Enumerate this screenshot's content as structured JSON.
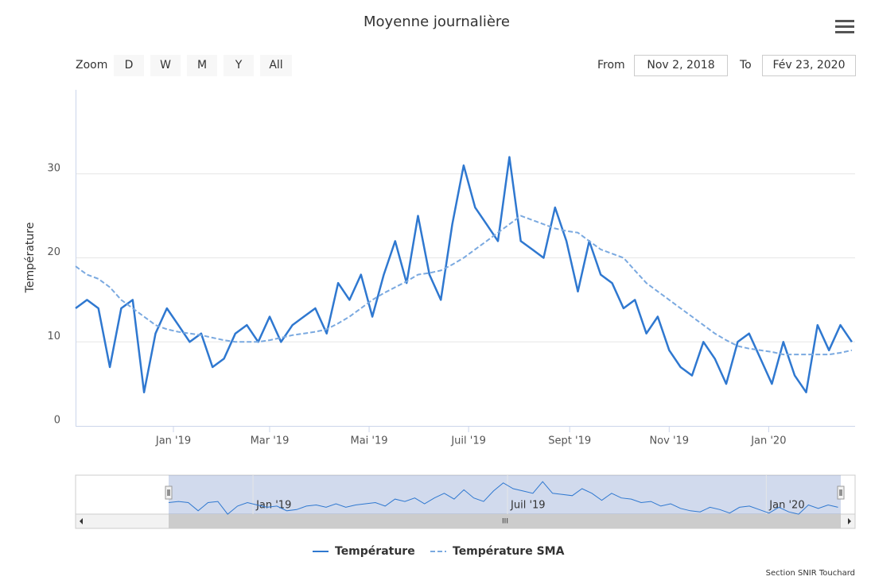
{
  "chart_data": {
    "type": "line",
    "title": "Moyenne journalière",
    "y_label": "Température",
    "range_selector": {
      "zoom_label": "Zoom",
      "buttons": [
        "D",
        "W",
        "M",
        "Y",
        "All"
      ],
      "from_label": "From",
      "from": "Nov 2, 2018",
      "to_label": "To",
      "to": "Fév 23, 2020"
    },
    "credits": "Section SNIR Touchard",
    "x": [
      "2018-11-02",
      "2018-11-09",
      "2018-11-16",
      "2018-11-23",
      "2018-11-30",
      "2018-12-07",
      "2018-12-14",
      "2018-12-21",
      "2018-12-28",
      "2019-01-04",
      "2019-01-11",
      "2019-01-18",
      "2019-01-25",
      "2019-02-01",
      "2019-02-08",
      "2019-02-15",
      "2019-02-22",
      "2019-03-01",
      "2019-03-08",
      "2019-03-15",
      "2019-03-22",
      "2019-03-29",
      "2019-04-05",
      "2019-04-12",
      "2019-04-19",
      "2019-04-26",
      "2019-05-03",
      "2019-05-10",
      "2019-05-17",
      "2019-05-24",
      "2019-05-31",
      "2019-06-07",
      "2019-06-14",
      "2019-06-21",
      "2019-06-28",
      "2019-07-05",
      "2019-07-12",
      "2019-07-19",
      "2019-07-26",
      "2019-08-02",
      "2019-08-09",
      "2019-08-16",
      "2019-08-23",
      "2019-08-30",
      "2019-09-06",
      "2019-09-13",
      "2019-09-20",
      "2019-09-27",
      "2019-10-04",
      "2019-10-11",
      "2019-10-18",
      "2019-10-25",
      "2019-11-01",
      "2019-11-08",
      "2019-11-15",
      "2019-11-22",
      "2019-11-29",
      "2019-12-06",
      "2019-12-13",
      "2019-12-20",
      "2019-12-27",
      "2020-01-03",
      "2020-01-10",
      "2020-01-17",
      "2020-01-24",
      "2020-01-31",
      "2020-02-07",
      "2020-02-14",
      "2020-02-21"
    ],
    "series": [
      {
        "name": "Température",
        "color": "#2f78d0",
        "dash": false,
        "values": [
          14,
          15,
          14,
          7,
          14,
          15,
          4,
          11,
          14,
          12,
          10,
          11,
          7,
          8,
          11,
          12,
          10,
          13,
          10,
          12,
          13,
          14,
          11,
          17,
          15,
          18,
          13,
          18,
          22,
          17,
          25,
          18,
          15,
          24,
          31,
          26,
          24,
          22,
          32,
          22,
          21,
          20,
          26,
          22,
          16,
          22,
          18,
          17,
          14,
          15,
          11,
          13,
          9,
          7,
          6,
          10,
          8,
          5,
          10,
          11,
          8,
          5,
          10,
          6,
          4,
          12,
          9,
          12,
          10
        ]
      },
      {
        "name": "Température SMA",
        "color": "#7aa9e0",
        "dash": true,
        "values": [
          19,
          18,
          17.5,
          16.5,
          15,
          14,
          13,
          12,
          11.5,
          11.2,
          11,
          10.8,
          10.5,
          10.2,
          10,
          10,
          10,
          10.2,
          10.5,
          10.8,
          11,
          11.2,
          11.5,
          12.2,
          13,
          14,
          15,
          15.8,
          16.5,
          17.2,
          18,
          18.2,
          18.5,
          19.2,
          20,
          21,
          22,
          23,
          24,
          25,
          24.5,
          24,
          23.5,
          23.2,
          23,
          22,
          21,
          20.5,
          20,
          18.5,
          17,
          16,
          15,
          14,
          13,
          12,
          11,
          10.2,
          9.5,
          9.2,
          9,
          8.8,
          8.5,
          8.5,
          8.5,
          8.5,
          8.5,
          8.7,
          9
        ]
      }
    ],
    "xlim": [
      "2018-11-02",
      "2020-02-23"
    ],
    "xticks": [
      {
        "value": "2019-01-01",
        "label": "Jan '19"
      },
      {
        "value": "2019-03-01",
        "label": "Mar '19"
      },
      {
        "value": "2019-05-01",
        "label": "Mai '19"
      },
      {
        "value": "2019-07-01",
        "label": "Juil '19"
      },
      {
        "value": "2019-09-01",
        "label": "Sept '19"
      },
      {
        "value": "2019-11-01",
        "label": "Nov '19"
      },
      {
        "value": "2020-01-01",
        "label": "Jan '20"
      }
    ],
    "ylim": [
      0,
      40
    ],
    "yticks": [
      0,
      10,
      20,
      30
    ],
    "grid": true,
    "navigator": {
      "xlim": [
        "2018-09-07",
        "2020-02-23"
      ],
      "xticks": [
        0,
        3,
        6
      ]
    }
  }
}
